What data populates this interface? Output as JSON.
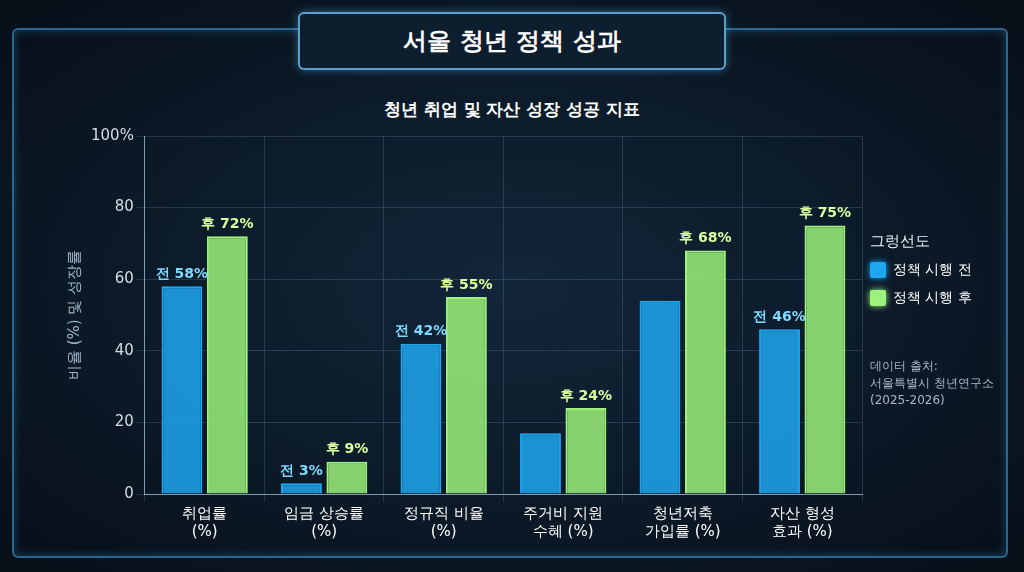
{
  "chart_data": {
    "type": "bar",
    "title": "서울 청년 정책 성과",
    "subtitle": "청년 취업 및 자산 성장 성공 지표",
    "y_label": "비율 (%) 및 성장률",
    "categories": [
      "취업률\n(%)",
      "임금 상승률\n(%)",
      "정규직 비율\n(%)",
      "주거비 지원\n수혜 (%)",
      "청년저축\n가입률 (%)",
      "자산 형성\n효과 (%)"
    ],
    "series": [
      {
        "name": "정책 시행 전",
        "color": "#1ea7f0",
        "values": [
          58,
          3,
          42,
          17,
          54,
          46
        ],
        "value_labels": [
          "전 58%",
          "전 3%",
          "전 42%",
          null,
          null,
          "전 46%"
        ]
      },
      {
        "name": "정책 시행 후",
        "color": "#9cf27a",
        "values": [
          72,
          9,
          55,
          24,
          68,
          75
        ],
        "value_labels": [
          "후 72%",
          "후 9%",
          "후 55%",
          "후 24%",
          "후 68%",
          "후 75%"
        ]
      }
    ],
    "ylim": [
      0,
      100
    ],
    "yticks": [
      0,
      20,
      40,
      60,
      80,
      {
        "value": 100,
        "label": "100%"
      }
    ],
    "grid": true,
    "legend": "right",
    "legend_title": "그렁선도",
    "data_labels": true,
    "annotations": [
      "데이터 출처:",
      "서울특별시 청년연구소",
      "(2025-2026)"
    ]
  }
}
